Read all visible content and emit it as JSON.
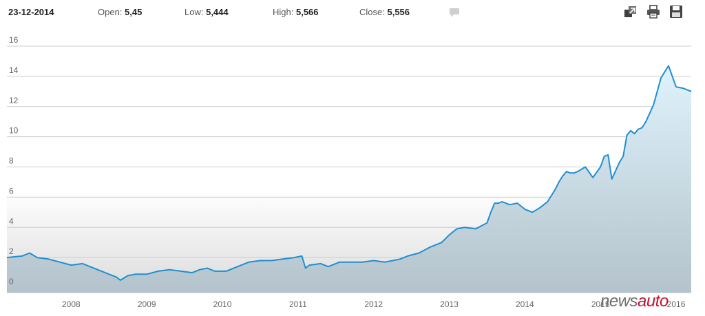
{
  "header": {
    "date": "23-12-2014",
    "open_label": "Open:",
    "open_value": "5,45",
    "low_label": "Low:",
    "low_value": "5,444",
    "high_label": "High:",
    "high_value": "5,566",
    "close_label": "Close:",
    "close_value": "5,556"
  },
  "toolbar": {
    "icons": [
      "comment-icon",
      "export-icon",
      "print-icon",
      "save-icon"
    ]
  },
  "watermark": {
    "part1": "news",
    "part2": "auto"
  },
  "colors": {
    "line": "#1f8fcf",
    "area_top": "#dff3fc",
    "area_bottom": "#b4c3cc",
    "grid": "#cccccc",
    "watermark_accent": "#c8102e"
  },
  "chart_data": {
    "type": "area",
    "xlabel": "",
    "ylabel": "",
    "xlim": [
      2007.65,
      2016.7
    ],
    "ylim": [
      0,
      16
    ],
    "y_ticks": [
      "0",
      "2",
      "4",
      "6",
      "8",
      "10",
      "12",
      "14",
      "16"
    ],
    "x_ticks": [
      "2008",
      "2009",
      "2010",
      "2011",
      "2012",
      "2013",
      "2014",
      "2015",
      "2016"
    ],
    "grid": true,
    "series": [
      {
        "x": [
          2007.65,
          2007.85,
          2007.95,
          2008.05,
          2008.2,
          2008.35,
          2008.5,
          2008.65,
          2008.75,
          2008.85,
          2009.0,
          2009.1,
          2009.15,
          2009.25,
          2009.35,
          2009.5,
          2009.65,
          2009.8,
          2009.95,
          2010.1,
          2010.2,
          2010.3,
          2010.4,
          2010.55,
          2010.7,
          2010.85,
          2011.0,
          2011.15,
          2011.3,
          2011.45,
          2011.55,
          2011.6,
          2011.65,
          2011.8,
          2011.9,
          2011.95,
          2012.05,
          2012.2,
          2012.35,
          2012.5,
          2012.65,
          2012.75,
          2012.85,
          2012.95,
          2013.1,
          2013.25,
          2013.4,
          2013.5,
          2013.6,
          2013.7,
          2013.85,
          2014.0,
          2014.05,
          2014.1,
          2014.15,
          2014.2,
          2014.3,
          2014.4,
          2014.5,
          2014.6,
          2014.7,
          2014.75,
          2014.8,
          2014.9,
          2014.95,
          2015.0,
          2015.05,
          2015.1,
          2015.15,
          2015.2,
          2015.3,
          2015.4,
          2015.5,
          2015.55,
          2015.6,
          2015.65,
          2015.75,
          2015.8,
          2015.85,
          2015.9,
          2015.95,
          2016.0,
          2016.05,
          2016.1,
          2016.2,
          2016.3,
          2016.4,
          2016.5,
          2016.6,
          2016.7
        ],
        "values": [
          2.0,
          2.1,
          2.3,
          2.0,
          1.9,
          1.7,
          1.5,
          1.6,
          1.4,
          1.2,
          0.9,
          0.7,
          0.5,
          0.8,
          0.9,
          0.9,
          1.1,
          1.2,
          1.1,
          1.0,
          1.2,
          1.3,
          1.1,
          1.1,
          1.4,
          1.7,
          1.8,
          1.8,
          1.9,
          2.0,
          2.1,
          1.3,
          1.5,
          1.6,
          1.4,
          1.5,
          1.7,
          1.7,
          1.7,
          1.8,
          1.7,
          1.8,
          1.9,
          2.1,
          2.3,
          2.7,
          3.0,
          3.5,
          3.9,
          4.0,
          3.9,
          4.3,
          5.0,
          5.6,
          5.6,
          5.7,
          5.5,
          5.6,
          5.2,
          5.0,
          5.3,
          5.5,
          5.7,
          6.5,
          7.0,
          7.4,
          7.7,
          7.6,
          7.6,
          7.7,
          8.0,
          7.3,
          8.0,
          8.7,
          8.8,
          7.2,
          8.3,
          8.7,
          10.1,
          10.4,
          10.2,
          10.5,
          10.6,
          11.0,
          12.1,
          13.9,
          14.7,
          13.3,
          13.2,
          13.0
        ]
      }
    ]
  }
}
